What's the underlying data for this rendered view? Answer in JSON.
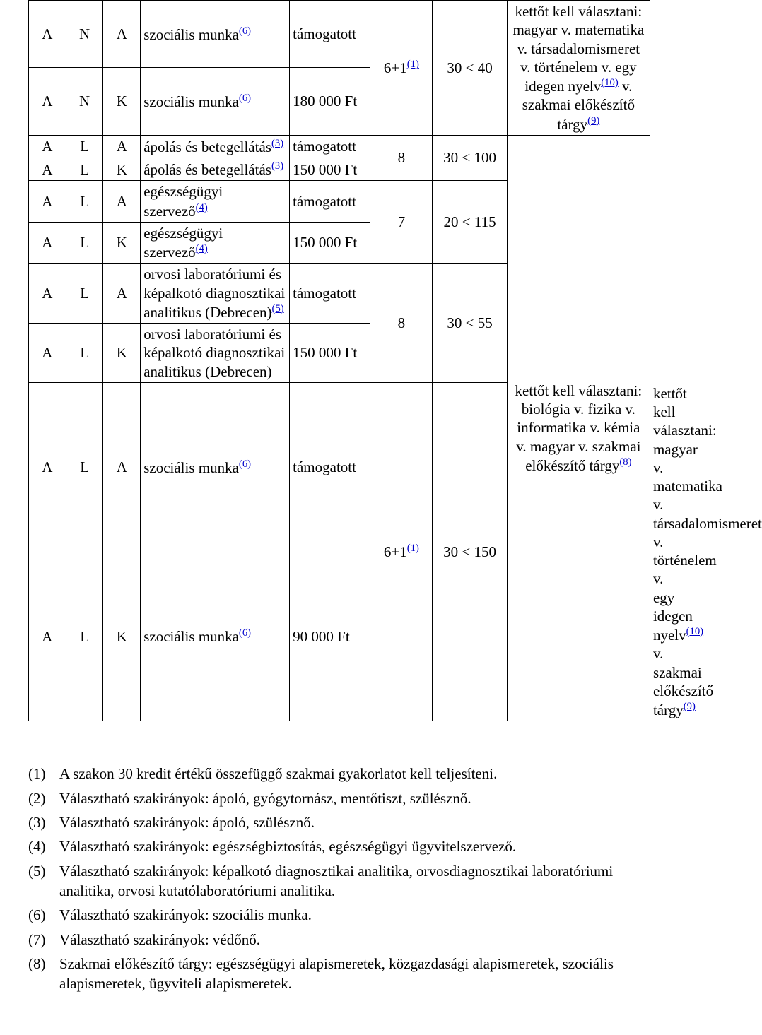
{
  "col_widths": [
    "6%",
    "6%",
    "6%",
    "24%",
    "13%",
    "10%",
    "12%",
    "23%"
  ],
  "rows": [
    {
      "c0": "A",
      "c1": "N",
      "c2": "A",
      "c3": {
        "text": "szociális munka",
        "ref": "(6)"
      },
      "c4": "támogatott",
      "c5": {
        "rowspan": 2,
        "text": "6+1",
        "ref": "(1)"
      },
      "c6": {
        "rowspan": 2,
        "text": "30 < 40"
      },
      "c7": {
        "rowspan": 2,
        "text": "kettőt kell választani: magyar v. matematika v. társadalomismeret v. történelem v. egy idegen nyelv",
        "ref": "(10)",
        "tail": " v. szakmai előkészítő tárgy",
        "ref2": "(9)"
      }
    },
    {
      "c0": "A",
      "c1": "N",
      "c2": "K",
      "c3": {
        "text": "szociális munka",
        "ref": "(6)"
      },
      "c4": "180 000 Ft"
    },
    {
      "c0": "A",
      "c1": "L",
      "c2": "A",
      "c3": {
        "text": "ápolás és betegellátás",
        "ref": "(3)"
      },
      "c4": "támogatott",
      "c5": {
        "rowspan": 2,
        "text": "8"
      },
      "c6": {
        "rowspan": 2,
        "text": "30 < 100"
      },
      "c7": {
        "rowspan": 8,
        "text": "kettőt kell választani: biológia v. fizika v. informatika v. kémia v. magyar v. szakmai előkészítő tárgy",
        "ref": "(8)"
      }
    },
    {
      "c0": "A",
      "c1": "L",
      "c2": "K",
      "c3": {
        "text": "ápolás és betegellátás",
        "ref": "(3)"
      },
      "c4": "150 000 Ft"
    },
    {
      "c0": "A",
      "c1": "L",
      "c2": "A",
      "c3": {
        "text": "egészségügyi szervező",
        "ref": "(4)"
      },
      "c4": "támogatott",
      "c5": {
        "rowspan": 2,
        "text": "7"
      },
      "c6": {
        "rowspan": 2,
        "text": "20 < 115"
      }
    },
    {
      "c0": "A",
      "c1": "L",
      "c2": "K",
      "c3": {
        "text": "egészségügyi szervező",
        "ref": "(4)"
      },
      "c4": "150 000 Ft"
    },
    {
      "c0": "A",
      "c1": "L",
      "c2": "A",
      "c3": {
        "text": "orvosi laboratóriumi és képalkotó diagnosztikai analitikus (Debrecen)",
        "ref": "(5)"
      },
      "c4": "támogatott",
      "c5": {
        "rowspan": 2,
        "text": "8"
      },
      "c6": {
        "rowspan": 2,
        "text": "30 < 55"
      }
    },
    {
      "c0": "A",
      "c1": "L",
      "c2": "K",
      "c3": {
        "text": "orvosi laboratóriumi és képalkotó diagnosztikai analitikus (Debrecen)"
      },
      "c4": "150 000 Ft"
    },
    {
      "c0": "A",
      "c1": "L",
      "c2": "A",
      "c3": {
        "text": "szociális munka",
        "ref": "(6)"
      },
      "c4": "támogatott",
      "c5": {
        "rowspan": 2,
        "text": "6+1",
        "ref": "(1)"
      },
      "c6": {
        "rowspan": 2,
        "text": "30 < 150"
      },
      "c7": {
        "rowspan": 2,
        "text": "kettőt kell választani: magyar v. matematika v. társadalomismeret v. történelem v. egy idegen nyelv",
        "ref": "(10)",
        "tail": " v. szakmai előkészítő tárgy",
        "ref2": "(9)"
      }
    },
    {
      "c0": "A",
      "c1": "L",
      "c2": "K",
      "c3": {
        "text": "szociális munka",
        "ref": "(6)"
      },
      "c4": "90 000 Ft"
    }
  ],
  "footnotes": [
    {
      "n": "(1)",
      "t": "A szakon 30 kredit értékű összefüggő szakmai gyakorlatot kell teljesíteni."
    },
    {
      "n": "(2)",
      "t": "Választható szakirányok: ápoló, gyógytornász, mentőtiszt, szülésznő."
    },
    {
      "n": "(3)",
      "t": "Választható szakirányok: ápoló, szülésznő."
    },
    {
      "n": "(4)",
      "t": "Választható szakirányok: egészségbiztosítás, egészségügyi ügyvitelszervező."
    },
    {
      "n": "(5)",
      "t": "Választható szakirányok: képalkotó diagnosztikai analitika, orvosdiagnosztikai laboratóriumi analitika, orvosi kutatólaboratóriumi analitika."
    },
    {
      "n": "(6)",
      "t": "Választható szakirányok: szociális munka."
    },
    {
      "n": "(7)",
      "t": "Választható szakirányok: védőnő."
    },
    {
      "n": "(8)",
      "t": "Szakmai előkészítő tárgy: egészségügyi alapismeretek, közgazdasági alapismeretek, szociális alapismeretek, ügyviteli alapismeretek."
    }
  ]
}
